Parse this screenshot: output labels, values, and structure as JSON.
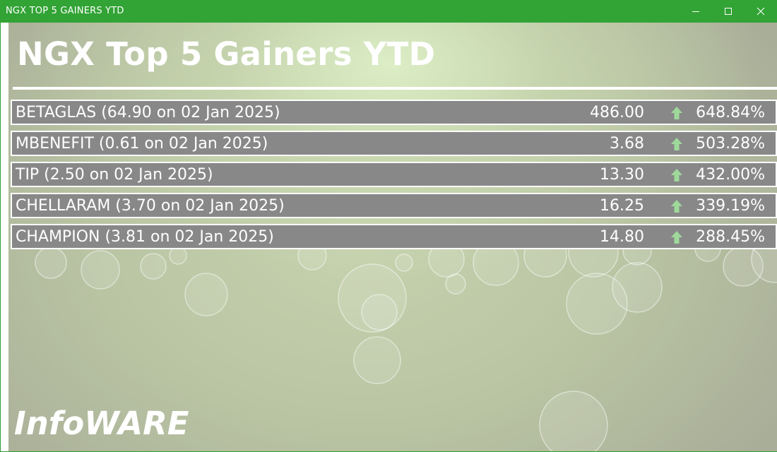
{
  "window": {
    "title": "NGX TOP 5 GAINERS YTD",
    "minimize_icon": "minimize-icon",
    "maximize_icon": "maximize-icon",
    "close_icon": "close-icon"
  },
  "header": {
    "title": "NGX Top 5 Gainers YTD"
  },
  "gainers": [
    {
      "label": "BETAGLAS (64.90 on 02 Jan 2025)",
      "price": "486.00",
      "change": "648.84%",
      "direction": "up-arrow-icon"
    },
    {
      "label": "MBENEFIT (0.61 on 02 Jan 2025)",
      "price": "3.68",
      "change": "503.28%",
      "direction": "up-arrow-icon"
    },
    {
      "label": "TIP (2.50 on 02 Jan 2025)",
      "price": "13.30",
      "change": "432.00%",
      "direction": "up-arrow-icon"
    },
    {
      "label": "CHELLARAM (3.70 on 02 Jan 2025)",
      "price": "16.25",
      "change": "339.19%",
      "direction": "up-arrow-icon"
    },
    {
      "label": "CHAMPION (3.81 on 02 Jan 2025)",
      "price": "14.80",
      "change": "288.45%",
      "direction": "up-arrow-icon"
    }
  ],
  "footer": {
    "brand": "InfoWARE"
  },
  "colors": {
    "titlebar": "#32a335",
    "row_background": "#888888",
    "up_arrow": "#9ed99a",
    "text": "#ffffff"
  }
}
